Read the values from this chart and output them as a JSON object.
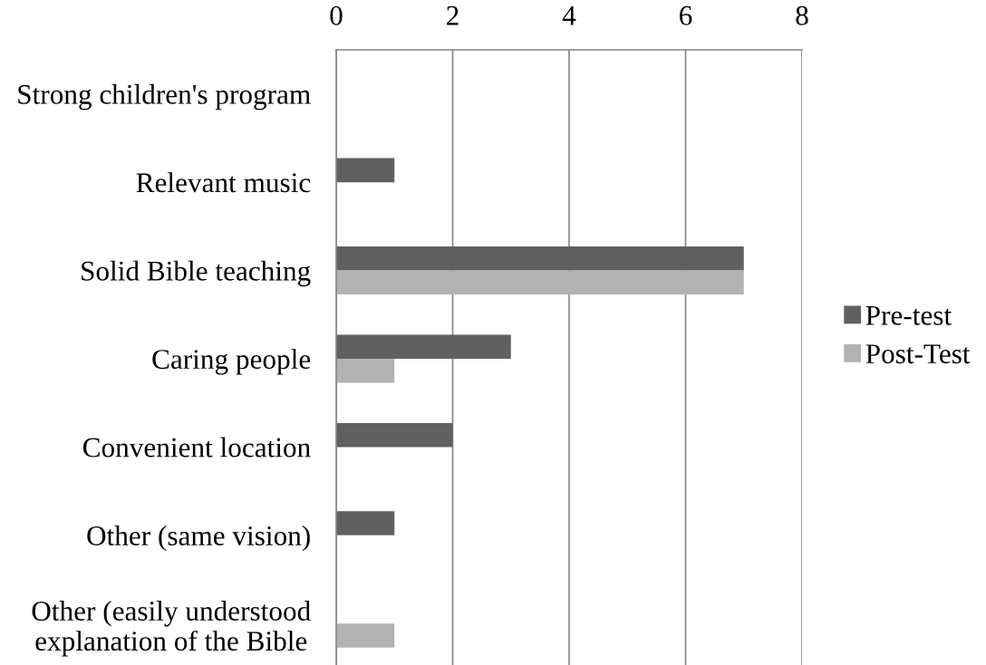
{
  "chart_data": {
    "type": "bar",
    "orientation": "horizontal",
    "categories": [
      "Strong children's program",
      "Relevant music",
      "Solid Bible teaching",
      "Caring people",
      "Convenient location",
      "Other (same vision)",
      "Other (easily understood\nexplanation of the Bible"
    ],
    "series": [
      {
        "name": "Pre-test",
        "color": "#606060",
        "values": [
          0,
          1,
          7,
          3,
          2,
          1,
          0
        ]
      },
      {
        "name": "Post-Test",
        "color": "#b2b2b2",
        "values": [
          0,
          0,
          7,
          1,
          0,
          0,
          1
        ]
      }
    ],
    "xlim": [
      0,
      8
    ],
    "xticks": [
      0,
      2,
      4,
      6,
      8
    ],
    "grid": "x",
    "legend": "right"
  }
}
